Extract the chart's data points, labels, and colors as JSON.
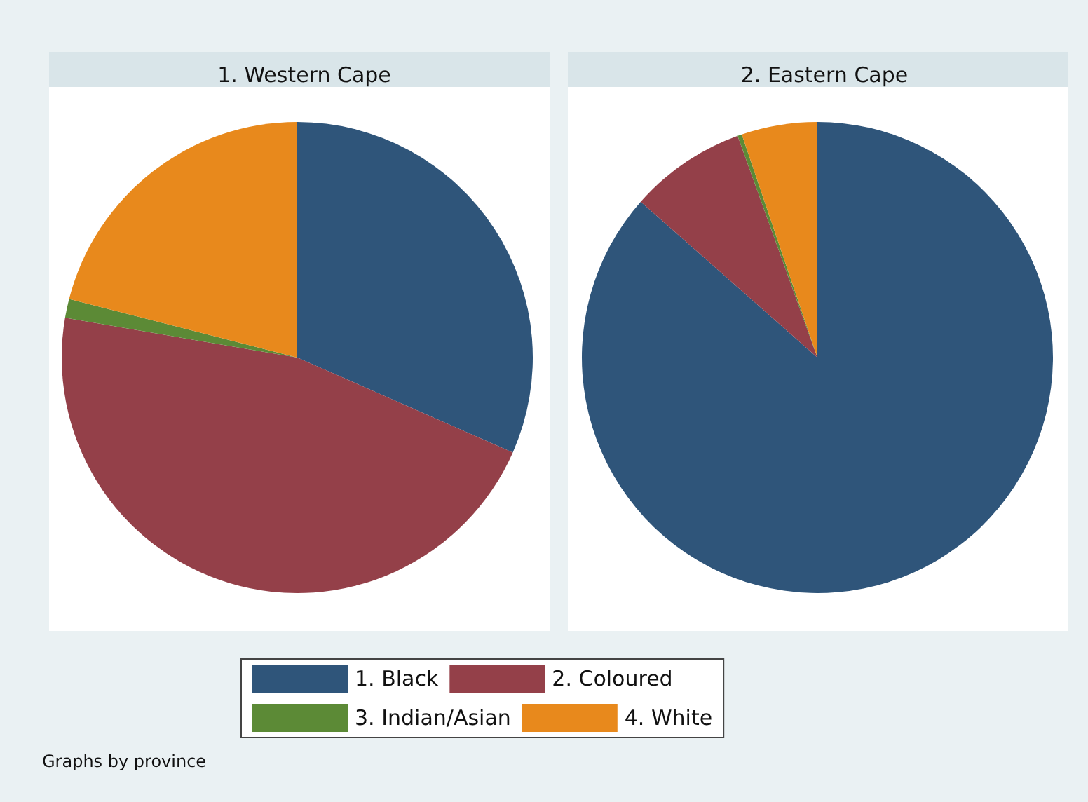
{
  "chart_data": [
    {
      "type": "pie",
      "title": "1. Western Cape",
      "categories": [
        "1. Black",
        "2. Coloured",
        "3. Indian/Asian",
        "4. White"
      ],
      "values": [
        31.6,
        46.1,
        1.3,
        21.0
      ],
      "colors": [
        "#2f557a",
        "#944049",
        "#5c8a36",
        "#e8891c"
      ],
      "legend": "bottom"
    },
    {
      "type": "pie",
      "title": "2. Eastern Cape",
      "categories": [
        null,
        null,
        null,
        null
      ],
      "values": [
        86.5,
        8.0,
        0.3,
        5.2
      ],
      "colors": [
        "#2f557a",
        "#944049",
        "#5c8a36",
        "#e8891c"
      ],
      "annotations": [
        "Graphs by province"
      ]
    }
  ]
}
